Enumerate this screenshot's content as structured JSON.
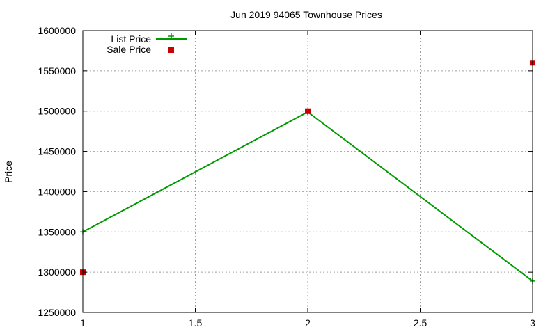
{
  "chart_data": {
    "type": "line",
    "title": "Jun 2019 94065 Townhouse Prices",
    "xlabel": "",
    "ylabel": "Price",
    "xlim": [
      1,
      3
    ],
    "ylim": [
      1250000,
      1600000
    ],
    "x_ticks": [
      "1",
      "1.5",
      "2",
      "2.5",
      "3"
    ],
    "y_ticks": [
      "1250000",
      "1300000",
      "1350000",
      "1400000",
      "1450000",
      "1500000",
      "1550000",
      "1600000"
    ],
    "grid": true,
    "legend_position": "top-left",
    "series": [
      {
        "name": "List Price",
        "style": "line-with-plus-markers",
        "color": "#009900",
        "x": [
          1,
          2,
          3
        ],
        "y": [
          1350000,
          1499000,
          1289000
        ]
      },
      {
        "name": "Sale Price",
        "style": "square-markers",
        "color": "#cc0000",
        "x": [
          1,
          2,
          3
        ],
        "y": [
          1300000,
          1500000,
          1560000
        ]
      }
    ]
  }
}
